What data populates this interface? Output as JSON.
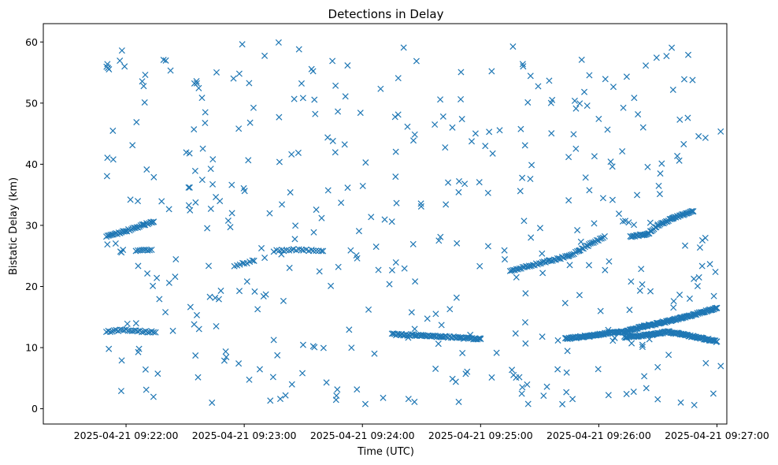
{
  "chart_data": {
    "type": "scatter",
    "title": "Detections in Delay",
    "xlabel": "Time (UTC)",
    "ylabel": "Bistatic Delay (km)",
    "marker": "x",
    "color": "#1f77b4",
    "grid": false,
    "xlim_seconds": [
      -42,
      305
    ],
    "ylim": [
      -2.5,
      63
    ],
    "x_ticks": [
      {
        "t": 0,
        "label": "2025-04-21 09:22:00"
      },
      {
        "t": 60,
        "label": "2025-04-21 09:23:00"
      },
      {
        "t": 120,
        "label": "2025-04-21 09:24:00"
      },
      {
        "t": 180,
        "label": "2025-04-21 09:25:00"
      },
      {
        "t": 240,
        "label": "2025-04-21 09:26:00"
      },
      {
        "t": 300,
        "label": "2025-04-21 09:27:00"
      }
    ],
    "y_ticks": [
      0,
      10,
      20,
      30,
      40,
      50,
      60
    ],
    "x_unit": "seconds after 2025-04-21 09:22:00 UTC",
    "tracks": [
      {
        "name": "track-a",
        "t": [
          -10,
          -3,
          4,
          9,
          14
        ],
        "y": [
          28.2,
          28.8,
          29.5,
          30.1,
          30.6
        ],
        "step": 0.7
      },
      {
        "name": "track-b",
        "t": [
          5,
          9,
          13
        ],
        "y": [
          25.8,
          25.9,
          26.0
        ],
        "step": 1.0
      },
      {
        "name": "track-c",
        "t": [
          -10,
          -5,
          0,
          5,
          15
        ],
        "y": [
          12.6,
          12.8,
          12.9,
          12.7,
          12.5
        ],
        "step": 1.0
      },
      {
        "name": "track-d",
        "t": [
          55,
          60,
          65
        ],
        "y": [
          23.3,
          23.8,
          24.2
        ],
        "step": 1.4
      },
      {
        "name": "track-e",
        "t": [
          75,
          80,
          85,
          90,
          95,
          100
        ],
        "y": [
          25.8,
          25.9,
          26.0,
          26.0,
          25.9,
          25.8
        ],
        "step": 1.4
      },
      {
        "name": "track-f",
        "t": [
          135,
          140,
          150,
          160,
          170,
          180
        ],
        "y": [
          12.2,
          12.1,
          12.0,
          11.8,
          11.6,
          11.4
        ],
        "step": 0.7
      },
      {
        "name": "track-g",
        "t": [
          195,
          205,
          215,
          225,
          235,
          243
        ],
        "y": [
          22.6,
          23.4,
          24.2,
          25.0,
          26.8,
          28.2
        ],
        "step": 0.8
      },
      {
        "name": "track-h",
        "t": [
          223,
          235,
          245,
          253,
          263,
          275,
          285,
          300
        ],
        "y": [
          11.5,
          11.9,
          12.4,
          12.6,
          13.5,
          14.3,
          15.1,
          16.5
        ],
        "step": 0.45
      },
      {
        "name": "track-i",
        "t": [
          253,
          260,
          268,
          275,
          282,
          288,
          296,
          300
        ],
        "y": [
          11.7,
          11.9,
          12.2,
          12.6,
          12.2,
          11.8,
          11.3,
          11.0
        ],
        "step": 0.45
      },
      {
        "name": "track-j",
        "t": [
          256,
          265,
          270,
          278,
          283,
          288
        ],
        "y": [
          28.2,
          28.6,
          30.0,
          31.2,
          31.8,
          32.3
        ],
        "step": 0.6
      }
    ],
    "scatter_seed": 20250421,
    "scatter_count": 420,
    "scatter_t_range": [
      -10,
      303
    ],
    "scatter_y_range": [
      0.5,
      60
    ]
  }
}
